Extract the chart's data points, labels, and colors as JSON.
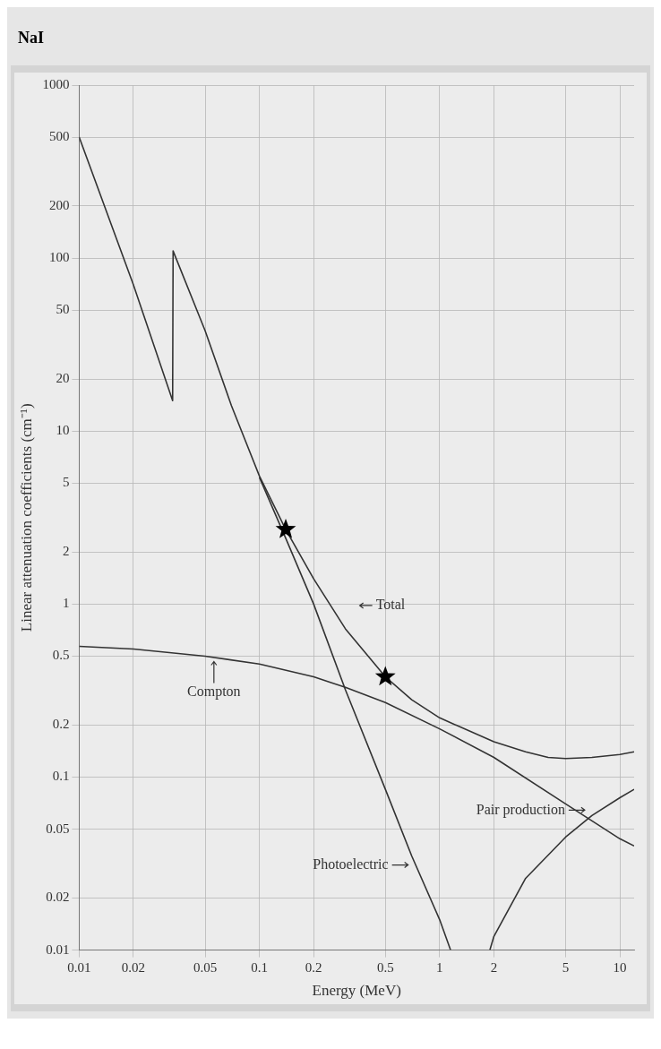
{
  "chart_data": {
    "type": "line",
    "title": "NaI",
    "xlabel": "Energy (MeV)",
    "ylabel": "Linear attenuation coefficients (cm⁻¹)",
    "log": "xy",
    "grid": true,
    "legend": false,
    "marker": "none",
    "xlim": [
      0.01,
      12
    ],
    "xticks": [
      0.01,
      0.02,
      0.05,
      0.1,
      0.2,
      0.5,
      1,
      2,
      5,
      10
    ],
    "ylim": [
      0.01,
      1000
    ],
    "yticks": [
      0.01,
      0.02,
      0.05,
      0.1,
      0.2,
      0.5,
      1,
      2,
      5,
      10,
      20,
      50,
      100,
      200,
      500,
      1000
    ],
    "series": [
      {
        "color": "#333333",
        "x": [
          0.01,
          0.02,
          0.033,
          0.0332,
          0.05,
          0.07,
          0.1,
          0.14,
          0.2,
          0.3,
          0.5,
          0.7,
          1,
          2,
          3,
          4,
          5,
          7,
          10,
          12
        ],
        "values": [
          500,
          70,
          15,
          110,
          38,
          14,
          5.5,
          2.7,
          1.4,
          0.72,
          0.38,
          0.28,
          0.22,
          0.16,
          0.14,
          0.13,
          0.128,
          0.13,
          0.135,
          0.14
        ]
      },
      {
        "color": "#333333",
        "x": [
          0.1,
          0.14,
          0.2,
          0.3,
          0.5,
          0.7,
          1,
          1.15
        ],
        "values": [
          5.4,
          2.4,
          1.0,
          0.32,
          0.085,
          0.035,
          0.015,
          0.01
        ]
      },
      {
        "color": "#333333",
        "x": [
          0.01,
          0.02,
          0.05,
          0.1,
          0.2,
          0.3,
          0.5,
          1,
          2,
          5,
          10,
          12
        ],
        "values": [
          0.57,
          0.55,
          0.5,
          0.45,
          0.38,
          0.33,
          0.27,
          0.19,
          0.13,
          0.07,
          0.044,
          0.04
        ]
      },
      {
        "color": "#333333",
        "x": [
          1.9,
          2,
          3,
          5,
          7,
          10,
          12
        ],
        "values": [
          0.01,
          0.012,
          0.026,
          0.045,
          0.06,
          0.076,
          0.085
        ]
      },
      {
        "type": "scatter",
        "marker": "star",
        "color": "#000000",
        "x": [
          0.14,
          0.5
        ],
        "values": [
          2.7,
          0.38
        ]
      }
    ],
    "annotations": [
      {
        "text": "Total",
        "x": 0.3,
        "y": 0.72
      },
      {
        "text": "Compton",
        "x": 0.05,
        "y": 0.5
      },
      {
        "text": "Pair production",
        "x": 7,
        "y": 0.06
      },
      {
        "text": "Photoelectric",
        "x": 0.7,
        "y": 0.035
      }
    ]
  }
}
